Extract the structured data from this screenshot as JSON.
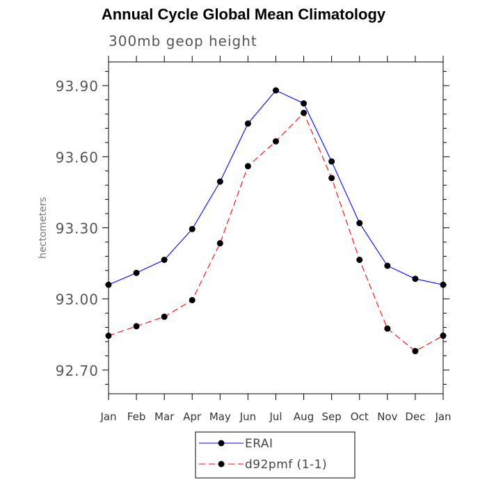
{
  "header": {
    "title": "Annual Cycle Global Mean Climatology",
    "subtitle": "300mb geop height"
  },
  "chart_data": {
    "type": "line",
    "title": "Annual Cycle Global Mean Climatology",
    "subtitle": "300mb geop height",
    "xlabel": "",
    "ylabel": "hectometers",
    "categories": [
      "Jan",
      "Feb",
      "Mar",
      "Apr",
      "May",
      "Jun",
      "Jul",
      "Aug",
      "Sep",
      "Oct",
      "Nov",
      "Dec",
      "Jan"
    ],
    "y_ticks": [
      "93.90",
      "93.60",
      "93.30",
      "93.00",
      "92.70"
    ],
    "ylim": [
      92.6,
      94.0
    ],
    "grid": false,
    "legend_position": "bottom-center",
    "series": [
      {
        "name": "ERAI",
        "color": "#0000ff",
        "line_style": "solid",
        "values": [
          93.06,
          93.11,
          93.165,
          93.295,
          93.495,
          93.74,
          93.88,
          93.825,
          93.58,
          93.32,
          93.14,
          93.085,
          93.06
        ]
      },
      {
        "name": "d92pmf (1-1)",
        "color": "#ff0000",
        "line_style": "dashed",
        "values": [
          92.845,
          92.885,
          92.925,
          92.995,
          93.235,
          93.56,
          93.665,
          93.785,
          93.51,
          93.165,
          92.875,
          92.78,
          92.845
        ]
      }
    ]
  }
}
